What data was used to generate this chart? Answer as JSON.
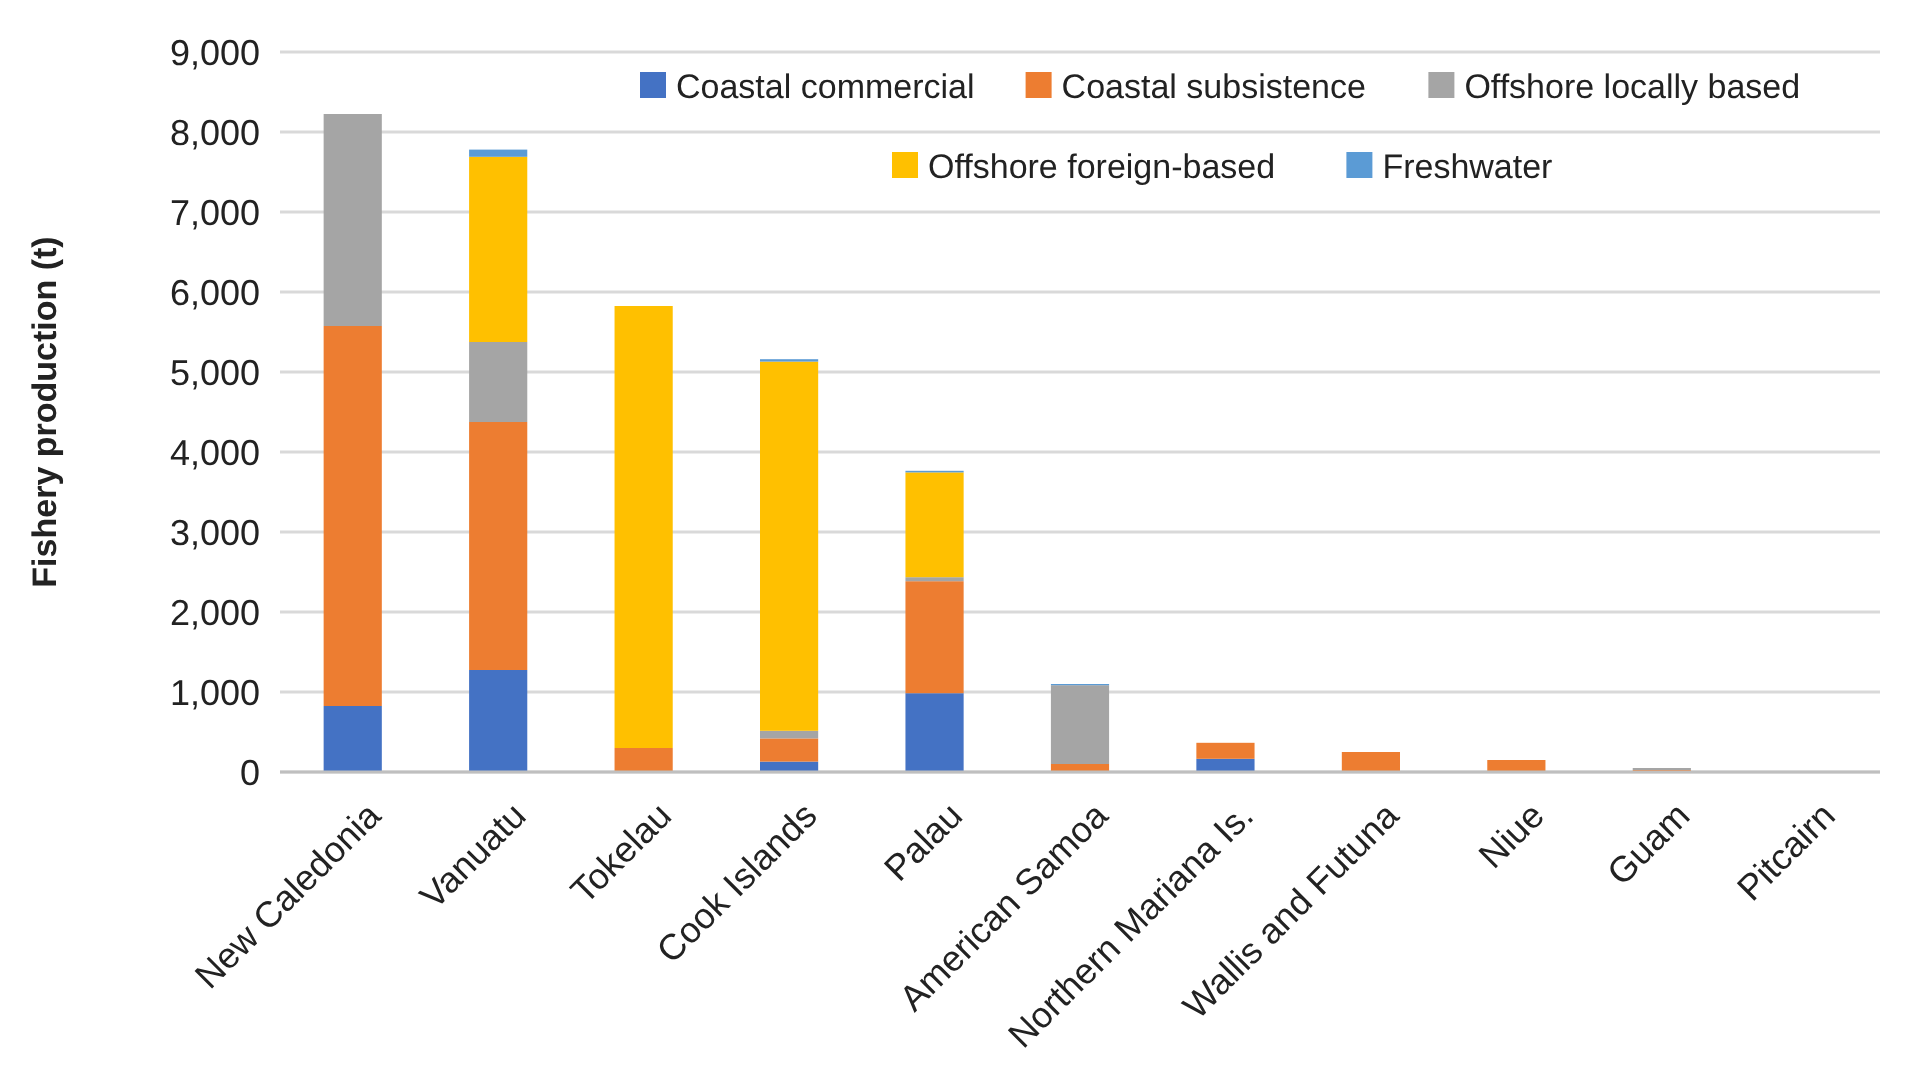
{
  "chart_data": {
    "type": "bar",
    "stacked": true,
    "ylabel": "Fishery production (t)",
    "categories": [
      "New Caledonia",
      "Vanuatu",
      "Tokelau",
      "Cook Islands",
      "Palau",
      "American Samoa",
      "Northern Mariana Is.",
      "Wallis and Futuna",
      "Niue",
      "Guam",
      "Pitcairn"
    ],
    "series": [
      {
        "name": "Coastal commercial",
        "color": "#4472c4",
        "values": [
          825,
          1275,
          0,
          130,
          985,
          0,
          165,
          null,
          0,
          0,
          0
        ]
      },
      {
        "name": "Coastal subsistence",
        "color": "#ed7d31",
        "values": [
          4750,
          3100,
          300,
          290,
          1400,
          100,
          200,
          250,
          150,
          25,
          null
        ]
      },
      {
        "name": "Offshore locally based",
        "color": "#a5a5a5",
        "values": [
          2650,
          1000,
          0,
          95,
          50,
          985,
          0,
          0,
          0,
          25,
          0
        ]
      },
      {
        "name": "Offshore foreign-based",
        "color": "#ffc000",
        "values": [
          0,
          2315,
          5525,
          4615,
          1310,
          0,
          0,
          0,
          0,
          0,
          0
        ]
      },
      {
        "name": "Freshwater",
        "color": "#5b9bd5",
        "values": [
          0,
          90,
          0,
          30,
          20,
          15,
          0,
          0,
          0,
          0,
          0
        ]
      }
    ],
    "ylim": [
      0,
      9000
    ],
    "yticks": [
      {
        "value": 0,
        "label": "0"
      },
      {
        "value": 1000,
        "label": "1,000"
      },
      {
        "value": 2000,
        "label": "2,000"
      },
      {
        "value": 3000,
        "label": "3,000"
      },
      {
        "value": 4000,
        "label": "4,000"
      },
      {
        "value": 5000,
        "label": "5,000"
      },
      {
        "value": 6000,
        "label": "6,000"
      },
      {
        "value": 7000,
        "label": "7,000"
      },
      {
        "value": 8000,
        "label": "8,000"
      },
      {
        "value": 9000,
        "label": "9,000"
      }
    ],
    "grid": "y",
    "legend": "top right"
  }
}
